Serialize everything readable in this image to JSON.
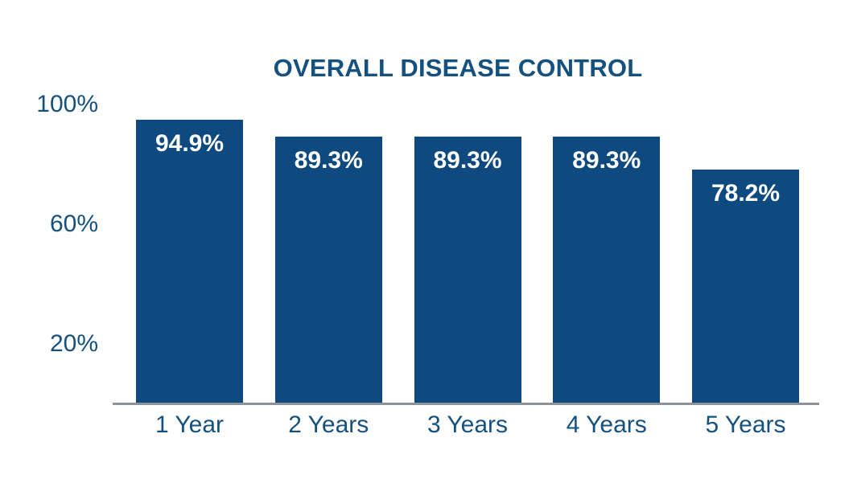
{
  "page": {
    "background": "#FFFFFF"
  },
  "chart_data": {
    "type": "bar",
    "title": "OVERALL DISEASE CONTROL",
    "categories": [
      "1 Year",
      "2 Years",
      "3 Years",
      "4 Years",
      "5 Years"
    ],
    "values": [
      94.9,
      89.3,
      89.3,
      89.3,
      78.2
    ],
    "value_labels": [
      "94.9%",
      "89.3%",
      "89.3%",
      "89.3%",
      "78.2%"
    ],
    "y_ticks": [
      {
        "value": 100,
        "label": "100%"
      },
      {
        "value": 60,
        "label": "60%"
      },
      {
        "value": 20,
        "label": "20%"
      }
    ],
    "ylim": [
      0,
      100
    ],
    "xlabel": "",
    "ylabel": "",
    "grid": false,
    "legend": null,
    "colors": {
      "bar_fill": "#0E4A7F",
      "bar_value_text": "#FFFFFF",
      "title_text": "#14517E",
      "axis_tick_text": "#14517E",
      "axis_line": "#8E9399"
    }
  }
}
